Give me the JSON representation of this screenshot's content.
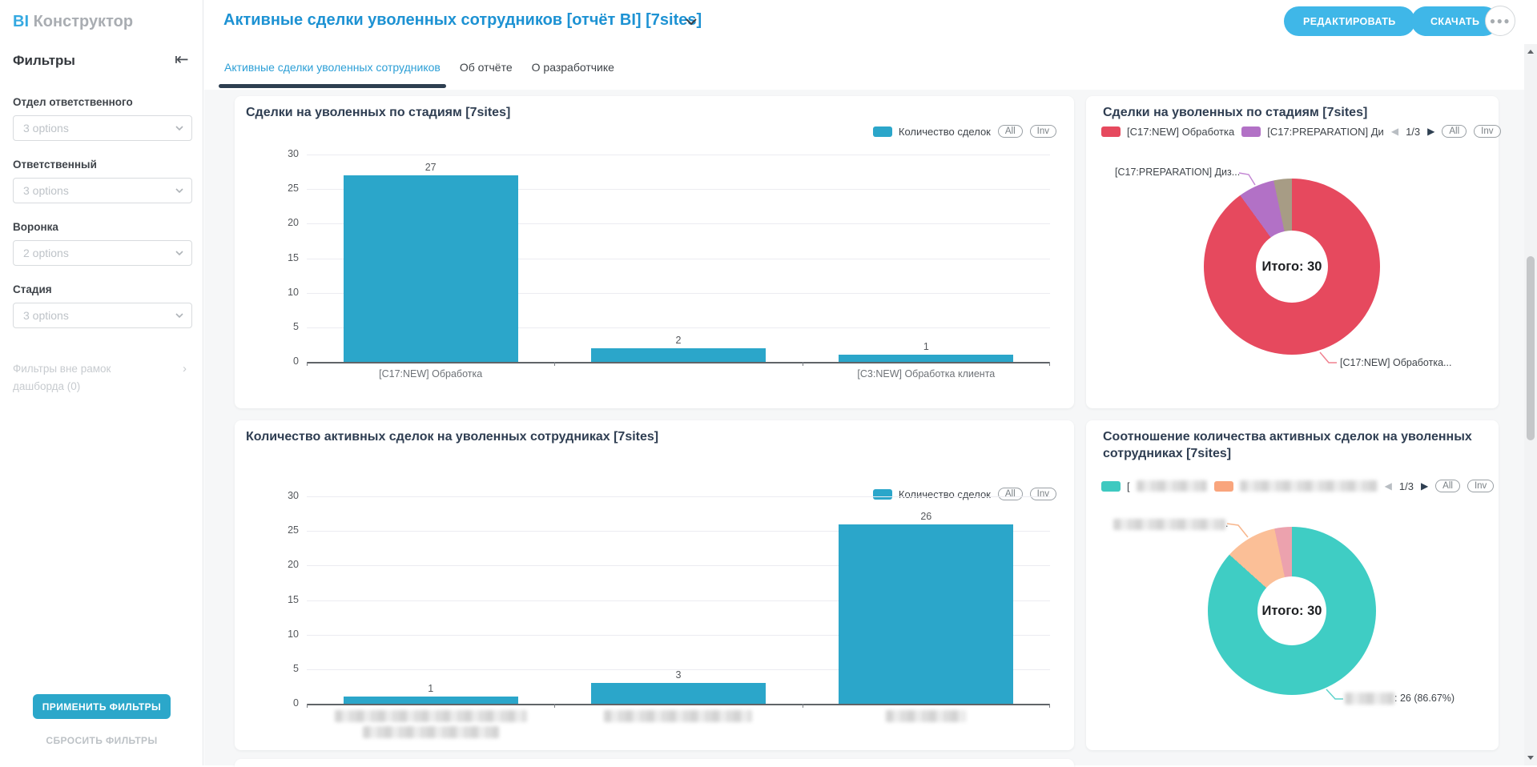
{
  "brand": {
    "bi": "BI",
    "name": "Конструктор"
  },
  "header": {
    "title": "Активные сделки уволенных сотрудников [отчёт BI] [7sites]",
    "edit_button": "РЕДАКТИРОВАТЬ",
    "download_button": "СКАЧАТЬ",
    "more_button_icon": "ellipsis"
  },
  "tabs": [
    {
      "label": "Активные сделки уволенных сотрудников",
      "active": true
    },
    {
      "label": "Об отчёте",
      "active": false
    },
    {
      "label": "О разработчике",
      "active": false
    }
  ],
  "sidebar": {
    "title": "Фильтры",
    "collapse_icon": "collapse-left",
    "filters": [
      {
        "label": "Отдел ответственного",
        "value": "3 options"
      },
      {
        "label": "Ответственный",
        "value": "3 options"
      },
      {
        "label": "Воронка",
        "value": "2 options"
      },
      {
        "label": "Стадия",
        "value": "3 options"
      }
    ],
    "external_filters_label": "Фильтры вне рамок дашборда (0)",
    "apply_button": "ПРИМЕНИТЬ ФИЛЬТРЫ",
    "reset_button": "СБРОСИТЬ ФИЛЬТРЫ"
  },
  "chart_data": [
    {
      "type": "bar",
      "title": "Сделки на уволенных по стадиям [7sites]",
      "series": [
        {
          "name": "Количество сделок",
          "color": "#2BA6CA"
        }
      ],
      "categories": [
        "[C17:NEW] Обработка",
        "",
        "[C3:NEW] Обработка клиента"
      ],
      "values": [
        27,
        2,
        1
      ],
      "ylim": [
        0,
        30
      ],
      "yticks": [
        30,
        25,
        20,
        15,
        10,
        5,
        0
      ],
      "legend_controls": [
        "All",
        "Inv"
      ]
    },
    {
      "type": "donut",
      "title": "Сделки на уволенных по стадиям [7sites]",
      "total": 30,
      "center_label": "Итого: 30",
      "pagination": "1/3",
      "legend": [
        {
          "label": "[C17:NEW] Обработка",
          "color": "#E6495E"
        },
        {
          "label": "[C17:PREPARATION] Ди",
          "color": "#B271C6"
        }
      ],
      "legend_controls": [
        "All",
        "Inv"
      ],
      "slices": [
        {
          "label": "[C17:NEW] Обработка",
          "value": 27,
          "color": "#E6495E"
        },
        {
          "label": "[C17:PREPARATION] Диз",
          "value": 2,
          "color": "#B271C6"
        },
        {
          "label": "",
          "value": 1,
          "color": "#A79C85"
        }
      ],
      "callout_top": "[C17:PREPARATION] Диз...",
      "callout_bottom": "[C17:NEW] Обработка..."
    },
    {
      "type": "bar",
      "title": "Количество активных сделок на уволенных сотрудниках [7sites]",
      "series": [
        {
          "name": "Количество сделок",
          "color": "#2BA6CA"
        }
      ],
      "categories": [
        "",
        "",
        ""
      ],
      "categories_censored": true,
      "values": [
        1,
        3,
        26
      ],
      "ylim": [
        0,
        30
      ],
      "yticks": [
        30,
        25,
        20,
        15,
        10,
        5,
        0
      ],
      "legend_controls": [
        "All",
        "Inv"
      ]
    },
    {
      "type": "donut",
      "title": "Соотношение количества активных сделок на уволенных сотрудниках [7sites]",
      "total": 30,
      "center_label": "Итого: 30",
      "pagination": "1/3",
      "legend": [
        {
          "label": "[",
          "color": "#3EC9C0",
          "censored": true
        },
        {
          "label": "",
          "color": "#F9A57D",
          "censored": true
        }
      ],
      "legend_controls": [
        "All",
        "Inv"
      ],
      "slices": [
        {
          "label": "",
          "value": 26,
          "color": "#3FCDC4"
        },
        {
          "label": "",
          "value": 3,
          "color": "#FBBF97"
        },
        {
          "label": "",
          "value": 1,
          "color": "#ECA2AE"
        }
      ],
      "callout_top_censored": true,
      "callout_bottom": ": 26 (86.67%)"
    }
  ]
}
